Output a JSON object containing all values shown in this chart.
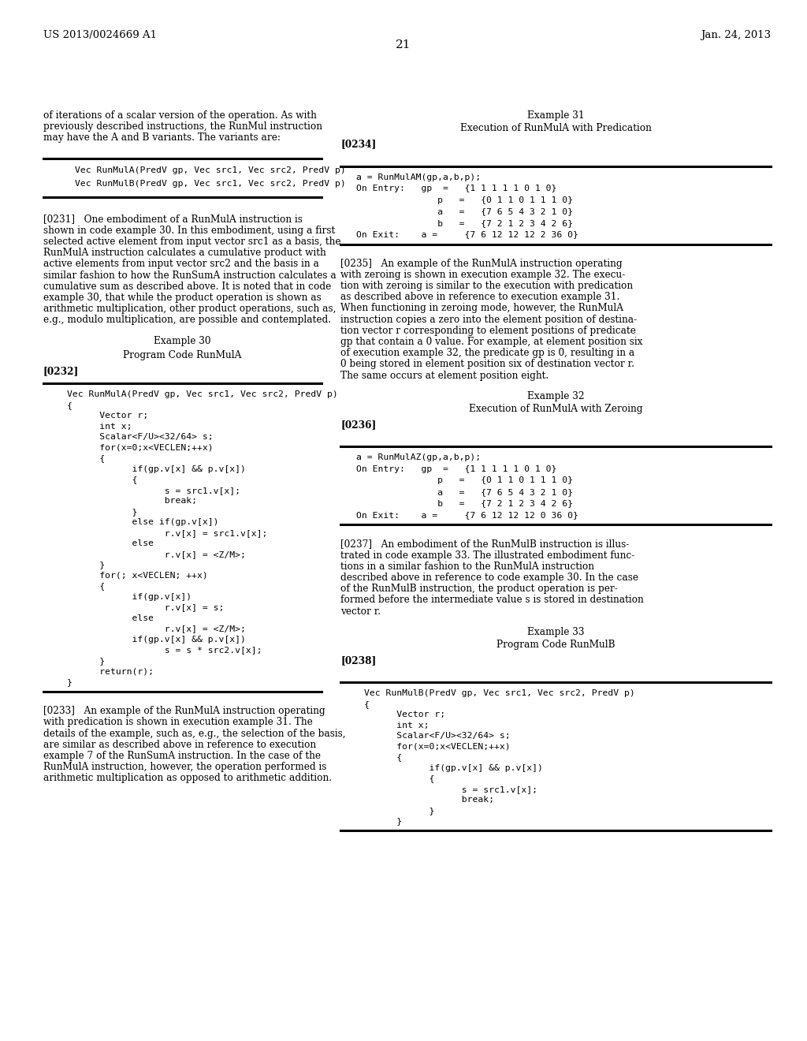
{
  "bg_color": "#ffffff",
  "header_left": "US 2013/0024669 A1",
  "header_right": "Jan. 24, 2013",
  "page_number": "21",
  "left_intro": [
    "of iterations of a scalar version of the operation. As with",
    "previously described instructions, the RunMul instruction",
    "may have the A and B variants. The variants are:"
  ],
  "left_box1": [
    "Vec RunMulA(PredV gp, Vec src1, Vec src2, PredV p)",
    "Vec RunMulB(PredV gp, Vec src1, Vec src2, PredV p)"
  ],
  "para_0231_lines": [
    "[0231]   One embodiment of a RunMulA instruction is",
    "shown in code example 30. In this embodiment, using a first",
    "selected active element from input vector src1 as a basis, the",
    "RunMulA instruction calculates a cumulative product with",
    "active elements from input vector src2 and the basis in a",
    "similar fashion to how the RunSumA instruction calculates a",
    "cumulative sum as described above. It is noted that in code",
    "example 30, that while the product operation is shown as",
    "arithmetic multiplication, other product operations, such as,",
    "e.g., modulo multiplication, are possible and contemplated."
  ],
  "example30_label": "Example 30",
  "example30_sub": "Program Code RunMulA",
  "label_0232": "[0232]",
  "left_box2": [
    "Vec RunMulA(PredV gp, Vec src1, Vec src2, PredV p)",
    "{",
    "      Vector r;",
    "      int x;",
    "      Scalar<F/U><32/64> s;",
    "      for(x=0;x<VECLEN;++x)",
    "      {",
    "            if(gp.v[x] && p.v[x])",
    "            {",
    "                  s = src1.v[x];",
    "                  break;",
    "            }",
    "            else if(gp.v[x])",
    "                  r.v[x] = src1.v[x];",
    "            else",
    "                  r.v[x] = <Z/M>;",
    "      }",
    "      for(; x<VECLEN; ++x)",
    "      {",
    "            if(gp.v[x])",
    "                  r.v[x] = s;",
    "            else",
    "                  r.v[x] = <Z/M>;",
    "            if(gp.v[x] && p.v[x])",
    "                  s = s * src2.v[x];",
    "      }",
    "      return(r);",
    "}"
  ],
  "para_0233_lines": [
    "[0233]   An example of the RunMulA instruction operating",
    "with predication is shown in execution example 31. The",
    "details of the example, such as, e.g., the selection of the basis,",
    "are similar as described above in reference to execution",
    "example 7 of the RunSumA instruction. In the case of the",
    "RunMulA instruction, however, the operation performed is",
    "arithmetic multiplication as opposed to arithmetic addition."
  ],
  "example31_label": "Example 31",
  "example31_sub": "Execution of RunMulA with Predication",
  "label_0234": "[0234]",
  "right_box1": [
    "a = RunMulAM(gp,a,b,p);",
    "On Entry:   gp  =   {1 1 1 1 1 0 1 0}",
    "               p   =   {0 1 1 0 1 1 1 0}",
    "               a   =   {7 6 5 4 3 2 1 0}",
    "               b   =   {7 2 1 2 3 4 2 6}",
    "On Exit:    a =     {7 6 12 12 12 2 36 0}"
  ],
  "para_0235_lines": [
    "[0235]   An example of the RunMulA instruction operating",
    "with zeroing is shown in execution example 32. The execu-",
    "tion with zeroing is similar to the execution with predication",
    "as described above in reference to execution example 31.",
    "When functioning in zeroing mode, however, the RunMulA",
    "instruction copies a zero into the element position of destina-",
    "tion vector r corresponding to element positions of predicate",
    "gp that contain a 0 value. For example, at element position six",
    "of execution example 32, the predicate gp is 0, resulting in a",
    "0 being stored in element position six of destination vector r.",
    "The same occurs at element position eight."
  ],
  "example32_label": "Example 32",
  "example32_sub": "Execution of RunMulA with Zeroing",
  "label_0236": "[0236]",
  "right_box2": [
    "a = RunMulAZ(gp,a,b,p);",
    "On Entry:   gp  =   {1 1 1 1 1 0 1 0}",
    "               p   =   {0 1 1 0 1 1 1 0}",
    "               a   =   {7 6 5 4 3 2 1 0}",
    "               b   =   {7 2 1 2 3 4 2 6}",
    "On Exit:    a =     {7 6 12 12 12 0 36 0}"
  ],
  "para_0237_lines": [
    "[0237]   An embodiment of the RunMulB instruction is illus-",
    "trated in code example 33. The illustrated embodiment func-",
    "tions in a similar fashion to the RunMulA instruction",
    "described above in reference to code example 30. In the case",
    "of the RunMulB instruction, the product operation is per-",
    "formed before the intermediate value s is stored in destination",
    "vector r."
  ],
  "example33_label": "Example 33",
  "example33_sub": "Program Code RunMulB",
  "label_0238": "[0238]",
  "right_box3": [
    "Vec RunMulB(PredV gp, Vec src1, Vec src2, PredV p)",
    "{",
    "      Vector r;",
    "      int x;",
    "      Scalar<F/U><32/64> s;",
    "      for(x=0;x<VECLEN;++x)",
    "      {",
    "            if(gp.v[x] && p.v[x])",
    "            {",
    "                  s = src1.v[x];",
    "                  break;",
    "            }",
    "      }"
  ]
}
